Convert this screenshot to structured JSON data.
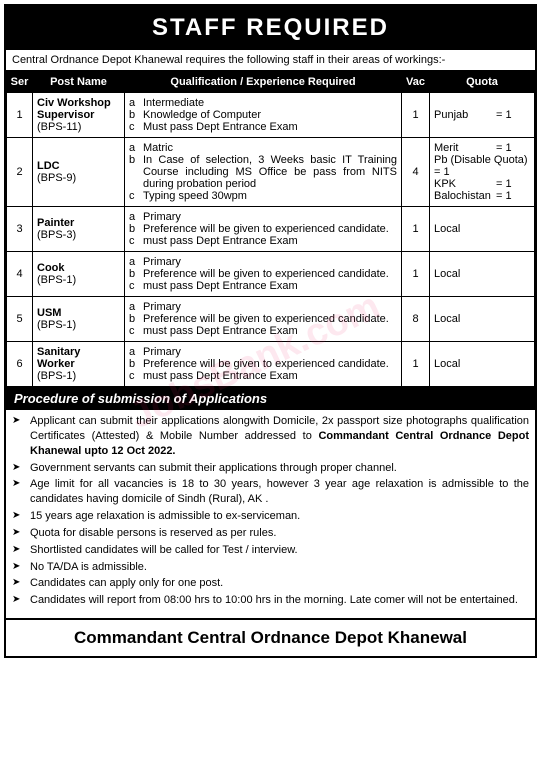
{
  "header": {
    "title": "STAFF REQUIRED"
  },
  "intro": "Central Ordnance Depot Khanewal requires the following staff in their areas of workings:-",
  "table": {
    "columns": [
      "Ser",
      "Post Name",
      "Qualification / Experience Required",
      "Vac",
      "Quota"
    ],
    "rows": [
      {
        "ser": "1",
        "post": "Civ Workshop Supervisor",
        "bps": "(BPS-11)",
        "quals": [
          {
            "l": "a",
            "t": "Intermediate"
          },
          {
            "l": "b",
            "t": "Knowledge of Computer"
          },
          {
            "l": "c",
            "t": "Must pass Dept Entrance Exam"
          }
        ],
        "vac": "1",
        "quota": [
          {
            "label": "Punjab",
            "val": "= 1"
          }
        ]
      },
      {
        "ser": "2",
        "post": "LDC",
        "bps": "(BPS-9)",
        "quals": [
          {
            "l": "a",
            "t": "Matric"
          },
          {
            "l": "b",
            "t": "In Case of selection, 3 Weeks basic IT Training Course including MS Office be pass from NITS during probation period"
          },
          {
            "l": "c",
            "t": "Typing speed 30wpm"
          }
        ],
        "vac": "4",
        "quota": [
          {
            "label": "Merit",
            "val": "= 1"
          },
          {
            "label": "Pb (Disable Quota)",
            "val": "= 1"
          },
          {
            "label": "KPK",
            "val": "= 1"
          },
          {
            "label": "Balochistan",
            "val": "= 1"
          }
        ]
      },
      {
        "ser": "3",
        "post": "Painter",
        "bps": "(BPS-3)",
        "quals": [
          {
            "l": "a",
            "t": "Primary"
          },
          {
            "l": "b",
            "t": "Preference will be given to experienced candidate."
          },
          {
            "l": "c",
            "t": "must pass Dept Entrance Exam"
          }
        ],
        "vac": "1",
        "quota": [
          {
            "label": "Local",
            "val": ""
          }
        ]
      },
      {
        "ser": "4",
        "post": "Cook",
        "bps": "(BPS-1)",
        "quals": [
          {
            "l": "a",
            "t": "Primary"
          },
          {
            "l": "b",
            "t": "Preference will be given to experienced candidate."
          },
          {
            "l": "c",
            "t": "must pass Dept Entrance Exam"
          }
        ],
        "vac": "1",
        "quota": [
          {
            "label": "Local",
            "val": ""
          }
        ]
      },
      {
        "ser": "5",
        "post": "USM",
        "bps": "(BPS-1)",
        "quals": [
          {
            "l": "a",
            "t": "Primary"
          },
          {
            "l": "b",
            "t": "Preference will be given to experienced candidate."
          },
          {
            "l": "c",
            "t": "must pass Dept Entrance Exam"
          }
        ],
        "vac": "8",
        "quota": [
          {
            "label": "Local",
            "val": ""
          }
        ]
      },
      {
        "ser": "6",
        "post": "Sanitary Worker",
        "bps": "(BPS-1)",
        "quals": [
          {
            "l": "a",
            "t": "Primary"
          },
          {
            "l": "b",
            "t": "Preference will be given to experienced candidate."
          },
          {
            "l": "c",
            "t": "must pass Dept Entrance Exam"
          }
        ],
        "vac": "1",
        "quota": [
          {
            "label": "Local",
            "val": ""
          }
        ]
      }
    ]
  },
  "procedure": {
    "heading": "Procedure of submission of Applications",
    "items": [
      "Applicant can submit their applications alongwith Domicile, 2x passport size photographs qualification Certificates (Attested) & Mobile Number addressed to <b>Commandant Central Ordnance Depot Khanewal upto 12 Oct 2022.</b>",
      "Government servants can submit their applications through proper channel.",
      "Age limit for all vacancies is 18 to 30 years, however 3 year age relaxation is admissible to the candidates having domicile of Sindh (Rural), AK .",
      "15 years age relaxation is admissible to ex-serviceman.",
      "Quota for disable persons is reserved as per rules.",
      "Shortlisted candidates will be called for Test / interview.",
      "No TA/DA is admissible.",
      "Candidates can apply only for one post.",
      "Candidates will report from 08:00 hrs to 10:00 hrs in the morning. Late comer will not be entertained."
    ]
  },
  "footer": {
    "text": "Commandant Central Ordnance Depot Khanewal"
  },
  "watermark": "JobsBank.com",
  "bullet": "➤"
}
